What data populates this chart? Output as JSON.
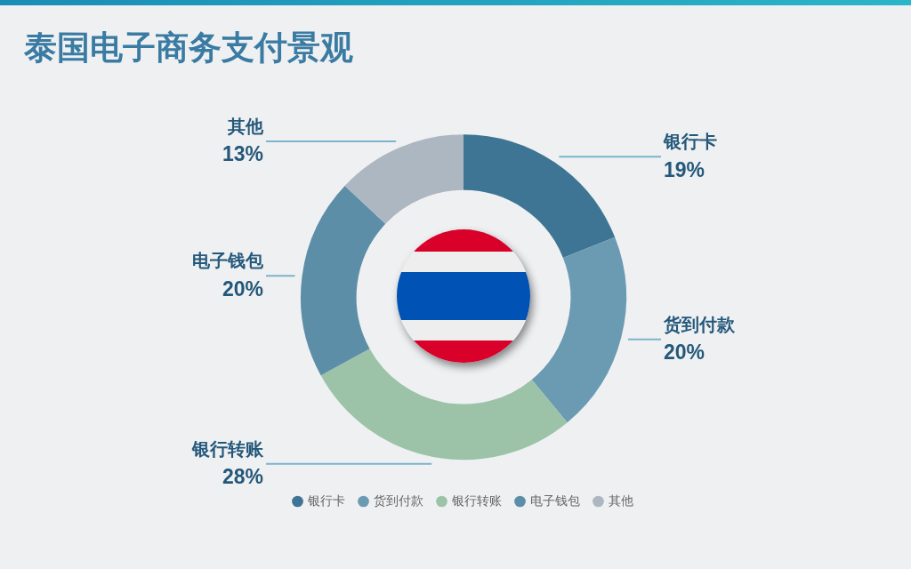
{
  "chart_data": {
    "type": "donut",
    "title": "泰国电子商务支付景观",
    "categories": [
      "银行卡",
      "货到付款",
      "银行转账",
      "电子钱包",
      "其他"
    ],
    "values": [
      19,
      20,
      28,
      20,
      13
    ],
    "colors": [
      "#3e7594",
      "#6b9ab3",
      "#9cc3a8",
      "#5d8ea8",
      "#adb7c1"
    ],
    "value_labels": [
      "19%",
      "20%",
      "28%",
      "20%",
      "13%"
    ],
    "legend": "bottom"
  }
}
